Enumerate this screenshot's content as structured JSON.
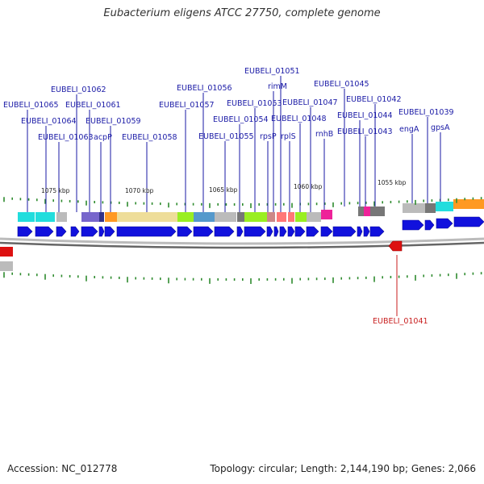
{
  "title": "Eubacterium eligens ATCC 27750, complete genome",
  "footer": {
    "accession": "Accession: NC_012778",
    "summary": "Topology: circular; Length: 2,144,190 bp; Genes: 2,066"
  },
  "colors": {
    "forward_gene": "#1111dd",
    "reverse_gene": "#dd1111",
    "label_forward": "#1a1aa6",
    "label_reverse": "#c81e1e",
    "tick": "#2e8b2e",
    "backbone": "#888888"
  },
  "scale_labels": [
    {
      "text": "1075 kbp"
    },
    {
      "text": "1070 kbp"
    },
    {
      "text": "1065 kbp"
    },
    {
      "text": "1060 kbp"
    },
    {
      "text": "1055 kbp"
    }
  ],
  "gene_labels": [
    {
      "text": "EUBELI_01065",
      "strand": "+"
    },
    {
      "text": "EUBELI_01064",
      "strand": "+"
    },
    {
      "text": "EUBELI_01063",
      "strand": "+"
    },
    {
      "text": "EUBELI_01062",
      "strand": "+"
    },
    {
      "text": "EUBELI_01061",
      "strand": "+"
    },
    {
      "text": "acpP",
      "strand": "+"
    },
    {
      "text": "EUBELI_01059",
      "strand": "+"
    },
    {
      "text": "EUBELI_01058",
      "strand": "+"
    },
    {
      "text": "EUBELI_01057",
      "strand": "+"
    },
    {
      "text": "EUBELI_01056",
      "strand": "+"
    },
    {
      "text": "EUBELI_01055",
      "strand": "+"
    },
    {
      "text": "EUBELI_01054",
      "strand": "+"
    },
    {
      "text": "EUBELI_01053",
      "strand": "+"
    },
    {
      "text": "rpsP",
      "strand": "+"
    },
    {
      "text": "rimM",
      "strand": "+"
    },
    {
      "text": "EUBELI_01051",
      "strand": "+"
    },
    {
      "text": "rplS",
      "strand": "+"
    },
    {
      "text": "EUBELI_01048",
      "strand": "+"
    },
    {
      "text": "EUBELI_01047",
      "strand": "+"
    },
    {
      "text": "rnhB",
      "strand": "+"
    },
    {
      "text": "EUBELI_01045",
      "strand": "+"
    },
    {
      "text": "EUBELI_01044",
      "strand": "+"
    },
    {
      "text": "EUBELI_01043",
      "strand": "+"
    },
    {
      "text": "EUBELI_01042",
      "strand": "+"
    },
    {
      "text": "engA",
      "strand": "+"
    },
    {
      "text": "EUBELI_01039",
      "strand": "+"
    },
    {
      "text": "gpsA",
      "strand": "+"
    },
    {
      "text": "EUBELI_01041",
      "strand": "-"
    }
  ]
}
